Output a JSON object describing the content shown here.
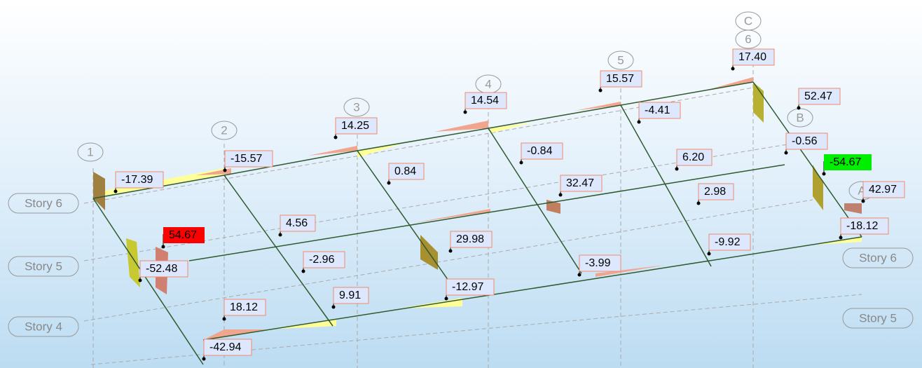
{
  "grid_labels": [
    "1",
    "2",
    "3",
    "4",
    "5",
    "6",
    "C",
    "B",
    "A"
  ],
  "story_labels_left": [
    "Story 6",
    "Story 5",
    "Story 4"
  ],
  "story_labels_right": [
    "Story 6",
    "Story 5"
  ],
  "values": [
    {
      "text": "17.40"
    },
    {
      "text": "52.47"
    },
    {
      "text": "15.57"
    },
    {
      "text": "14.54"
    },
    {
      "text": "-4.41"
    },
    {
      "text": "14.25"
    },
    {
      "text": "-0.56"
    },
    {
      "text": "-0.84"
    },
    {
      "text": "6.20"
    },
    {
      "text": "-15.57"
    },
    {
      "text": "-54.67",
      "color": "#00ee00"
    },
    {
      "text": "0.84"
    },
    {
      "text": "-17.39"
    },
    {
      "text": "32.47"
    },
    {
      "text": "2.98"
    },
    {
      "text": "42.97"
    },
    {
      "text": "4.56"
    },
    {
      "text": "-18.12"
    },
    {
      "text": "54.67",
      "color": "#ff0000"
    },
    {
      "text": "29.98"
    },
    {
      "text": "-9.92"
    },
    {
      "text": "-2.96"
    },
    {
      "text": "-52.48"
    },
    {
      "text": "-3.99"
    },
    {
      "text": "9.91"
    },
    {
      "text": "-12.97"
    },
    {
      "text": "18.12"
    },
    {
      "text": "-42.94"
    }
  ]
}
